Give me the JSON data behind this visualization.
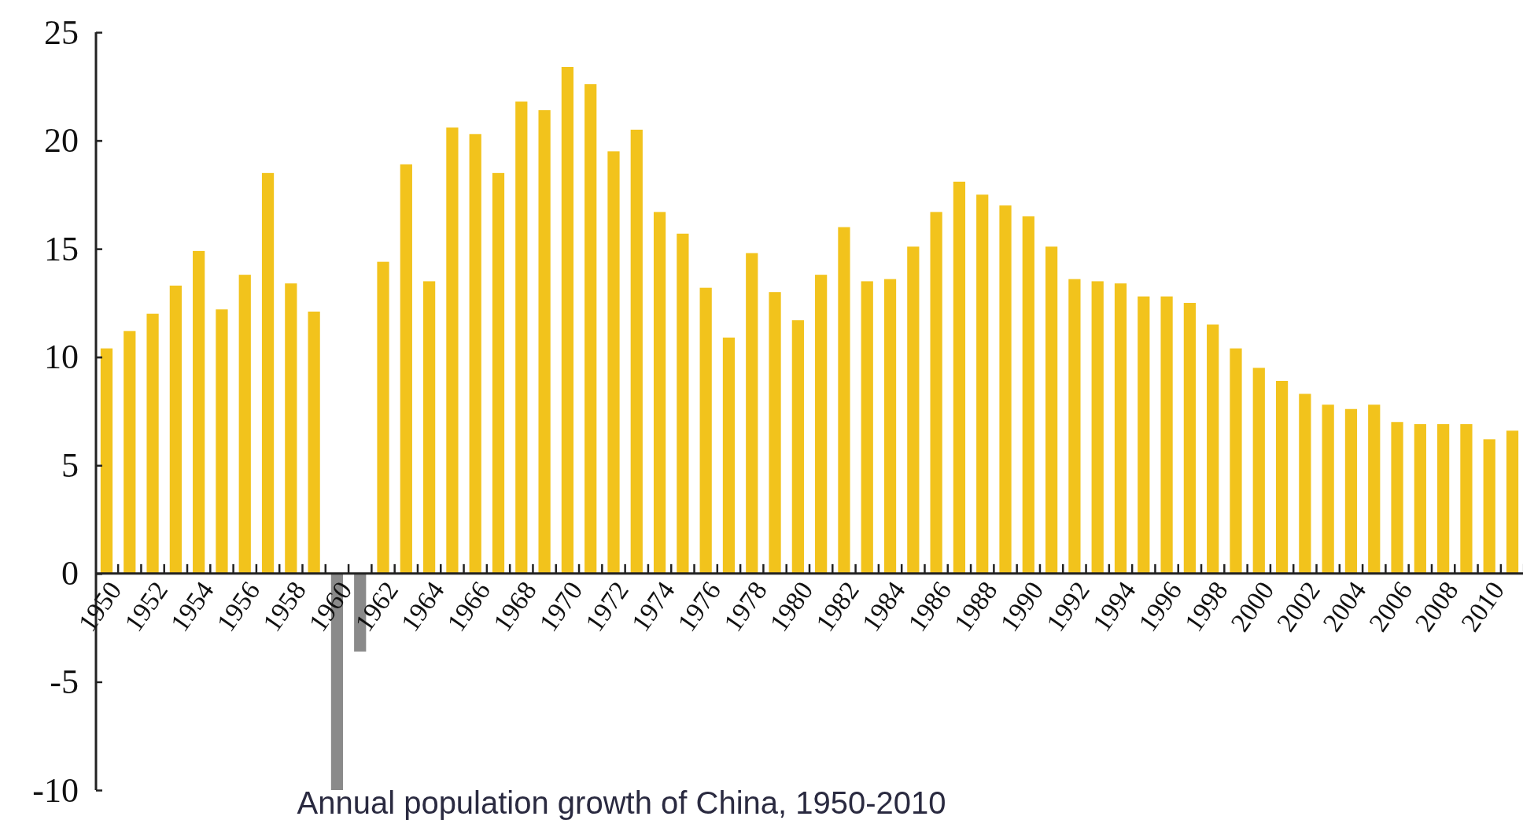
{
  "chart_data": {
    "type": "bar",
    "title": "Annual population growth of China, 1950-2010",
    "categories": [
      "1950",
      null,
      "1952",
      null,
      "1954",
      null,
      "1956",
      null,
      "1958",
      null,
      "1960",
      null,
      "1962",
      null,
      "1964",
      null,
      "1966",
      null,
      "1968",
      null,
      "1970",
      null,
      "1972",
      null,
      "1974",
      null,
      "1976",
      null,
      "1978",
      null,
      "1980",
      null,
      "1982",
      null,
      "1984",
      null,
      "1986",
      null,
      "1988",
      null,
      "1990",
      null,
      "1992",
      null,
      "1994",
      null,
      "1996",
      null,
      "1998",
      null,
      "2000",
      null,
      "2002",
      null,
      "2004",
      null,
      "2006",
      null,
      "2008",
      null,
      "2010",
      null
    ],
    "values": [
      10.4,
      11.2,
      12.0,
      13.3,
      14.9,
      12.2,
      13.8,
      18.5,
      13.4,
      12.1,
      -10.0,
      -3.6,
      14.4,
      18.9,
      13.5,
      20.6,
      20.3,
      18.5,
      21.8,
      21.4,
      23.4,
      22.6,
      19.5,
      20.5,
      16.7,
      15.7,
      13.2,
      10.9,
      14.8,
      13.0,
      11.7,
      13.8,
      16.0,
      13.5,
      13.6,
      15.1,
      16.7,
      18.1,
      17.5,
      17.0,
      16.5,
      15.1,
      13.6,
      13.5,
      13.4,
      12.8,
      12.8,
      12.5,
      11.5,
      10.4,
      9.5,
      8.9,
      8.3,
      7.8,
      7.6,
      7.8,
      7.0,
      6.9,
      6.9,
      6.9,
      6.2,
      6.6
    ],
    "colors": [
      "#f2c31c",
      "#f2c31c",
      "#f2c31c",
      "#f2c31c",
      "#f2c31c",
      "#f2c31c",
      "#f2c31c",
      "#f2c31c",
      "#f2c31c",
      "#f2c31c",
      "#8a8a8a",
      "#8a8a8a",
      "#f2c31c",
      "#f2c31c",
      "#f2c31c",
      "#f2c31c",
      "#f2c31c",
      "#f2c31c",
      "#f2c31c",
      "#f2c31c",
      "#f2c31c",
      "#f2c31c",
      "#f2c31c",
      "#f2c31c",
      "#f2c31c",
      "#f2c31c",
      "#f2c31c",
      "#f2c31c",
      "#f2c31c",
      "#f2c31c",
      "#f2c31c",
      "#f2c31c",
      "#f2c31c",
      "#f2c31c",
      "#f2c31c",
      "#f2c31c",
      "#f2c31c",
      "#f2c31c",
      "#f2c31c",
      "#f2c31c",
      "#f2c31c",
      "#f2c31c",
      "#f2c31c",
      "#f2c31c",
      "#f2c31c",
      "#f2c31c",
      "#f2c31c",
      "#f2c31c",
      "#f2c31c",
      "#f2c31c",
      "#f2c31c",
      "#f2c31c",
      "#f2c31c",
      "#f2c31c",
      "#f2c31c",
      "#f2c31c",
      "#f2c31c",
      "#f2c31c",
      "#f2c31c",
      "#f2c31c",
      "#f2c31c",
      "#f2c31c"
    ],
    "ylim": [
      -10,
      25
    ],
    "yticks": [
      -10,
      -5,
      0,
      5,
      10,
      15,
      20,
      25
    ]
  }
}
